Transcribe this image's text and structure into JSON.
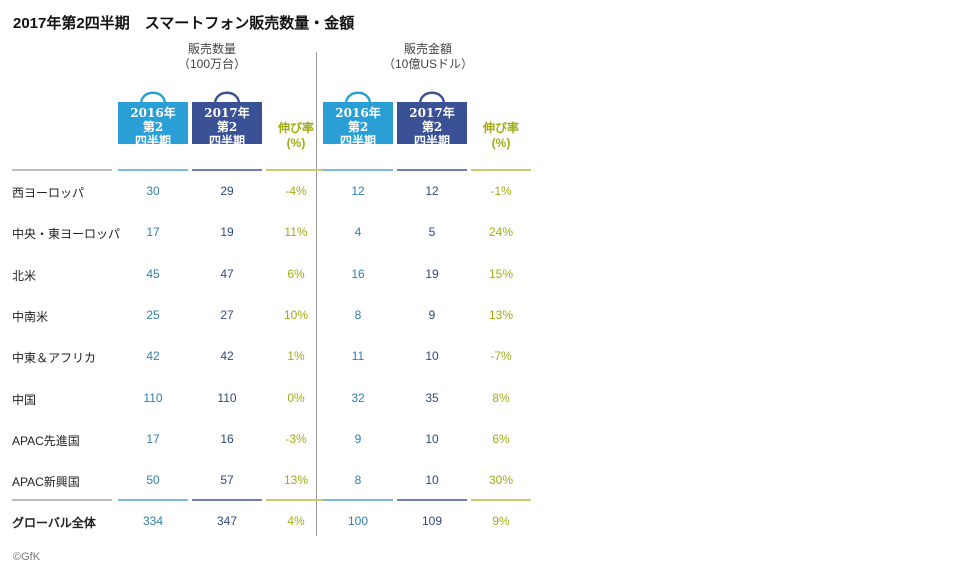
{
  "title": "2017年第2四半期　スマートフォン販売数量・金額",
  "groups": [
    {
      "header_line1": "販売数量",
      "header_line2": "（100万台）"
    },
    {
      "header_line1": "販売金額",
      "header_line2": "（10億USドル）"
    }
  ],
  "column_headers": {
    "y2016": [
      "2016年",
      "第2",
      "四半期"
    ],
    "y2017": [
      "2017年",
      "第2",
      "四半期"
    ],
    "growth": [
      "伸び率",
      "(%)"
    ]
  },
  "colors": {
    "bag_2016": "#2a9fd6",
    "bag_2017": "#3a5295",
    "growth": "#a3ab14",
    "text_2016": "#2f7fb0",
    "text_2017": "#2e4a7e"
  },
  "chart_data": {
    "type": "table",
    "title": "2017年第2四半期　スマートフォン販売数量・金額",
    "columns": [
      "販売数量 2016年第2四半期",
      "販売数量 2017年第2四半期",
      "販売数量 伸び率(%)",
      "販売金額 2016年第2四半期",
      "販売金額 2017年第2四半期",
      "販売金額 伸び率(%)"
    ],
    "rows": [
      {
        "region": "西ヨーロッパ",
        "units_2016": "30",
        "units_2017": "29",
        "units_growth": "-4%",
        "value_2016": "12",
        "value_2017": "12",
        "value_growth": "-1%"
      },
      {
        "region": "中央・東ヨーロッパ",
        "units_2016": "17",
        "units_2017": "19",
        "units_growth": "11%",
        "value_2016": "4",
        "value_2017": "5",
        "value_growth": "24%"
      },
      {
        "region": "北米",
        "units_2016": "45",
        "units_2017": "47",
        "units_growth": "6%",
        "value_2016": "16",
        "value_2017": "19",
        "value_growth": "15%"
      },
      {
        "region": "中南米",
        "units_2016": "25",
        "units_2017": "27",
        "units_growth": "10%",
        "value_2016": "8",
        "value_2017": "9",
        "value_growth": "13%"
      },
      {
        "region": "中東＆アフリカ",
        "units_2016": "42",
        "units_2017": "42",
        "units_growth": "1%",
        "value_2016": "11",
        "value_2017": "10",
        "value_growth": "-7%"
      },
      {
        "region": "中国",
        "units_2016": "110",
        "units_2017": "110",
        "units_growth": "0%",
        "value_2016": "32",
        "value_2017": "35",
        "value_growth": "8%"
      },
      {
        "region": "APAC先進国",
        "units_2016": "17",
        "units_2017": "16",
        "units_growth": "-3%",
        "value_2016": "9",
        "value_2017": "10",
        "value_growth": "6%"
      },
      {
        "region": "APAC新興国",
        "units_2016": "50",
        "units_2017": "57",
        "units_growth": "13%",
        "value_2016": "8",
        "value_2017": "10",
        "value_growth": "30%"
      }
    ],
    "total": {
      "region": "グローバル全体",
      "units_2016": "334",
      "units_2017": "347",
      "units_growth": "4%",
      "value_2016": "100",
      "value_2017": "109",
      "value_growth": "9%"
    }
  },
  "credit": "©GfK"
}
